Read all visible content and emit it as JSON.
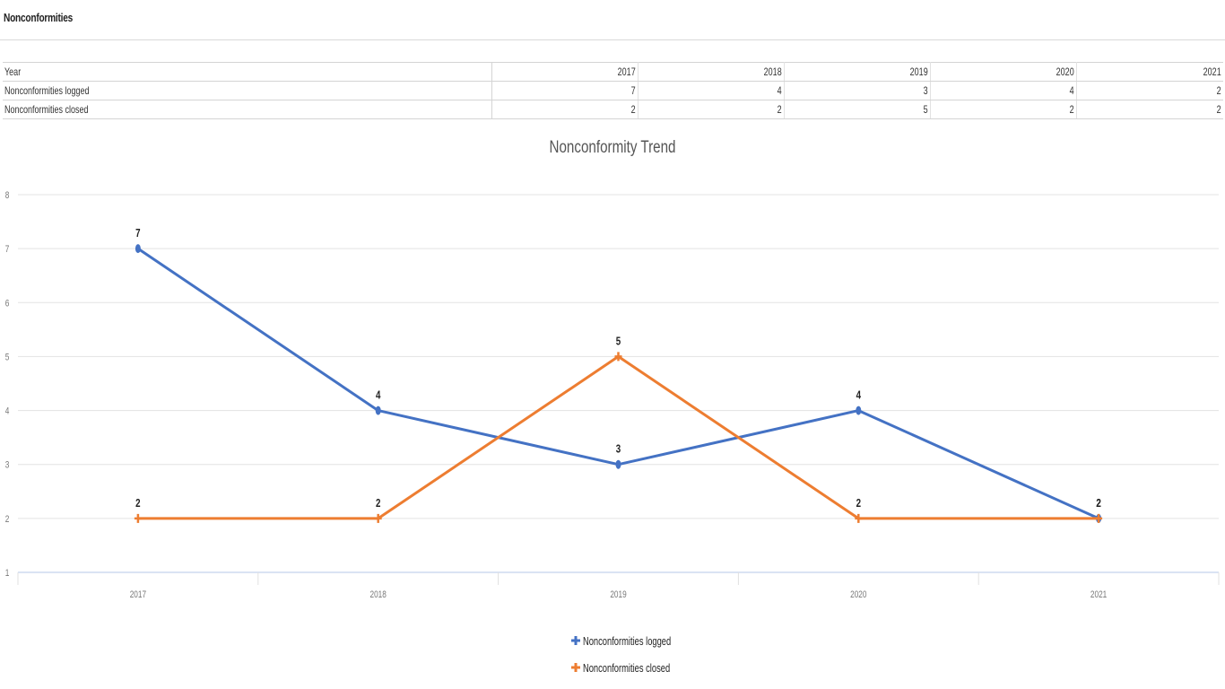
{
  "page": {
    "title": "Nonconformities"
  },
  "table": {
    "header_label": "Year",
    "years": [
      "2017",
      "2018",
      "2019",
      "2020",
      "2021"
    ],
    "rows": [
      {
        "label": "Nonconformities logged",
        "values": [
          "7",
          "4",
          "3",
          "4",
          "2"
        ]
      },
      {
        "label": "Nonconformities closed",
        "values": [
          "2",
          "2",
          "5",
          "2",
          "2"
        ]
      }
    ]
  },
  "chart_data": {
    "type": "line",
    "title": "Nonconformity Trend",
    "xlabel": "",
    "ylabel": "",
    "categories": [
      "2017",
      "2018",
      "2019",
      "2020",
      "2021"
    ],
    "ylim": [
      1,
      8
    ],
    "yticks": [
      "1",
      "2",
      "3",
      "4",
      "5",
      "6",
      "7",
      "8"
    ],
    "grid": true,
    "legend_position": "bottom",
    "series": [
      {
        "name": "Nonconformities logged",
        "values": [
          7,
          4,
          3,
          4,
          2
        ],
        "color": "#4472c4"
      },
      {
        "name": "Nonconformities closed",
        "values": [
          2,
          2,
          5,
          2,
          2
        ],
        "color": "#ed7d31"
      }
    ],
    "data_labels": true
  }
}
